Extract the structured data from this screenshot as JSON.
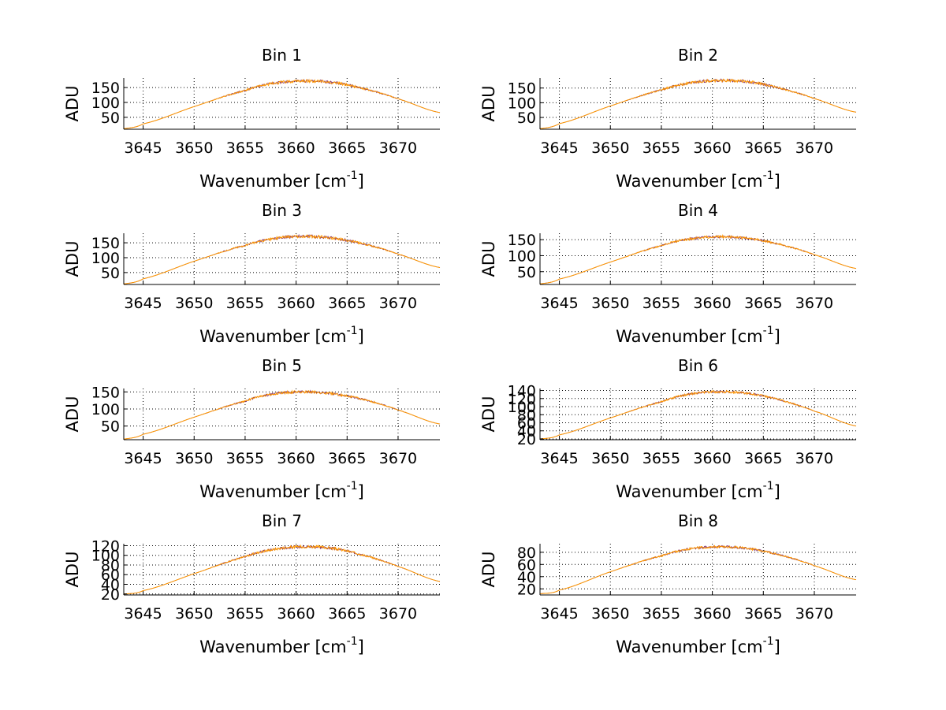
{
  "colors": {
    "line": "#ff9900",
    "trace_secondary": "#7a1f5e",
    "grid": "#000000",
    "axes": "#000000",
    "background": "#ffffff"
  },
  "chart_data": [
    {
      "type": "line",
      "title": "Bin 1",
      "xlabel": "Wavenumber [cm",
      "xlabel_sup": "-1",
      "xlabel_close": "]",
      "ylabel": "ADU",
      "xlim": [
        3643.1,
        3674.1
      ],
      "ylim": [
        10,
        182
      ],
      "grid": true,
      "xticks": [
        3645,
        3650,
        3655,
        3660,
        3665,
        3670
      ],
      "yticks": [
        50,
        100,
        150
      ],
      "ytick_labels": [
        "50",
        "100",
        "150"
      ],
      "x": [
        3643.1,
        3645,
        3650,
        3655,
        3658,
        3661,
        3664,
        3667,
        3670,
        3674.1
      ],
      "y": [
        12,
        28,
        86,
        140,
        165,
        172,
        165,
        143,
        112,
        66
      ],
      "noise": 5
    },
    {
      "type": "line",
      "title": "Bin 2",
      "xlabel": "Wavenumber [cm",
      "xlabel_sup": "-1",
      "xlabel_close": "]",
      "ylabel": "ADU",
      "xlim": [
        3643.1,
        3674.1
      ],
      "ylim": [
        10,
        184
      ],
      "grid": true,
      "xticks": [
        3645,
        3650,
        3655,
        3660,
        3665,
        3670
      ],
      "yticks": [
        50,
        100,
        150
      ],
      "ytick_labels": [
        "50",
        "100",
        "150"
      ],
      "x": [
        3643.1,
        3645,
        3650,
        3655,
        3658,
        3661,
        3664,
        3667,
        3670,
        3674.1
      ],
      "y": [
        12,
        29,
        89,
        143,
        168,
        176,
        169,
        146,
        114,
        68
      ],
      "noise": 5
    },
    {
      "type": "line",
      "title": "Bin 3",
      "xlabel": "Wavenumber [cm",
      "xlabel_sup": "-1",
      "xlabel_close": "]",
      "ylabel": "ADU",
      "xlim": [
        3643.1,
        3674.1
      ],
      "ylim": [
        10,
        182
      ],
      "grid": true,
      "xticks": [
        3645,
        3650,
        3655,
        3660,
        3665,
        3670
      ],
      "yticks": [
        50,
        100,
        150
      ],
      "ytick_labels": [
        "50",
        "100",
        "150"
      ],
      "x": [
        3643.1,
        3645,
        3650,
        3655,
        3658,
        3661,
        3664,
        3667,
        3670,
        3674.1
      ],
      "y": [
        12,
        29,
        88,
        141,
        165,
        172,
        164,
        143,
        112,
        67
      ],
      "noise": 5
    },
    {
      "type": "line",
      "title": "Bin 4",
      "xlabel": "Wavenumber [cm",
      "xlabel_sup": "-1",
      "xlabel_close": "]",
      "ylabel": "ADU",
      "xlim": [
        3643.1,
        3674.1
      ],
      "ylim": [
        10,
        170
      ],
      "grid": true,
      "xticks": [
        3645,
        3650,
        3655,
        3660,
        3665,
        3670
      ],
      "yticks": [
        50,
        100,
        150
      ],
      "ytick_labels": [
        "50",
        "100",
        "150"
      ],
      "x": [
        3643.1,
        3645,
        3650,
        3655,
        3658,
        3661,
        3664,
        3667,
        3670,
        3674.1
      ],
      "y": [
        12,
        27,
        80,
        131,
        153,
        159,
        152,
        132,
        103,
        60
      ],
      "noise": 4
    },
    {
      "type": "line",
      "title": "Bin 5",
      "xlabel": "Wavenumber [cm",
      "xlabel_sup": "-1",
      "xlabel_close": "]",
      "ylabel": "ADU",
      "xlim": [
        3643.1,
        3674.1
      ],
      "ylim": [
        10,
        160
      ],
      "grid": true,
      "xticks": [
        3645,
        3650,
        3655,
        3660,
        3665,
        3670
      ],
      "yticks": [
        50,
        100,
        150
      ],
      "ytick_labels": [
        "50",
        "100",
        "150"
      ],
      "x": [
        3643.1,
        3645,
        3650,
        3655,
        3658,
        3661,
        3664,
        3667,
        3670,
        3674.1
      ],
      "y": [
        12,
        26,
        76,
        123,
        145,
        150,
        143,
        125,
        97,
        56
      ],
      "noise": 4
    },
    {
      "type": "line",
      "title": "Bin 6",
      "xlabel": "Wavenumber [cm",
      "xlabel_sup": "-1",
      "xlabel_close": "]",
      "ylabel": "ADU",
      "xlim": [
        3643.1,
        3674.1
      ],
      "ylim": [
        18,
        145
      ],
      "grid": true,
      "xticks": [
        3645,
        3650,
        3655,
        3660,
        3665,
        3670
      ],
      "yticks": [
        20,
        40,
        60,
        80,
        100,
        120,
        140
      ],
      "ytick_labels": [
        "20",
        "40",
        "60",
        "80",
        "100",
        "120",
        "140"
      ],
      "x": [
        3643.1,
        3645,
        3650,
        3655,
        3658,
        3661,
        3664,
        3667,
        3670,
        3674.1
      ],
      "y": [
        20,
        30,
        72,
        112,
        132,
        137,
        131,
        114,
        89,
        52
      ],
      "noise": 3
    },
    {
      "type": "line",
      "title": "Bin 7",
      "xlabel": "Wavenumber [cm",
      "xlabel_sup": "-1",
      "xlabel_close": "]",
      "ylabel": "ADU",
      "xlim": [
        3643.1,
        3674.1
      ],
      "ylim": [
        18,
        124
      ],
      "grid": true,
      "xticks": [
        3645,
        3650,
        3655,
        3660,
        3665,
        3670
      ],
      "yticks": [
        20,
        40,
        60,
        80,
        100,
        120
      ],
      "ytick_labels": [
        "20",
        "40",
        "60",
        "80",
        "100",
        "120"
      ],
      "x": [
        3643.1,
        3645,
        3650,
        3655,
        3658,
        3661,
        3664,
        3667,
        3670,
        3674.1
      ],
      "y": [
        20,
        27,
        62,
        97,
        113,
        118,
        113,
        98,
        77,
        46
      ],
      "noise": 3
    },
    {
      "type": "line",
      "title": "Bin 8",
      "xlabel": "Wavenumber [cm",
      "xlabel_sup": "-1",
      "xlabel_close": "]",
      "ylabel": "ADU",
      "xlim": [
        3643.1,
        3674.1
      ],
      "ylim": [
        10,
        94
      ],
      "grid": true,
      "xticks": [
        3645,
        3650,
        3655,
        3660,
        3665,
        3670
      ],
      "yticks": [
        20,
        40,
        60,
        80
      ],
      "ytick_labels": [
        "20",
        "40",
        "60",
        "80"
      ],
      "x": [
        3643.1,
        3645,
        3650,
        3655,
        3658,
        3661,
        3664,
        3667,
        3670,
        3674.1
      ],
      "y": [
        12,
        18,
        48,
        74,
        86,
        89,
        85,
        74,
        58,
        35
      ],
      "noise": 2
    }
  ]
}
